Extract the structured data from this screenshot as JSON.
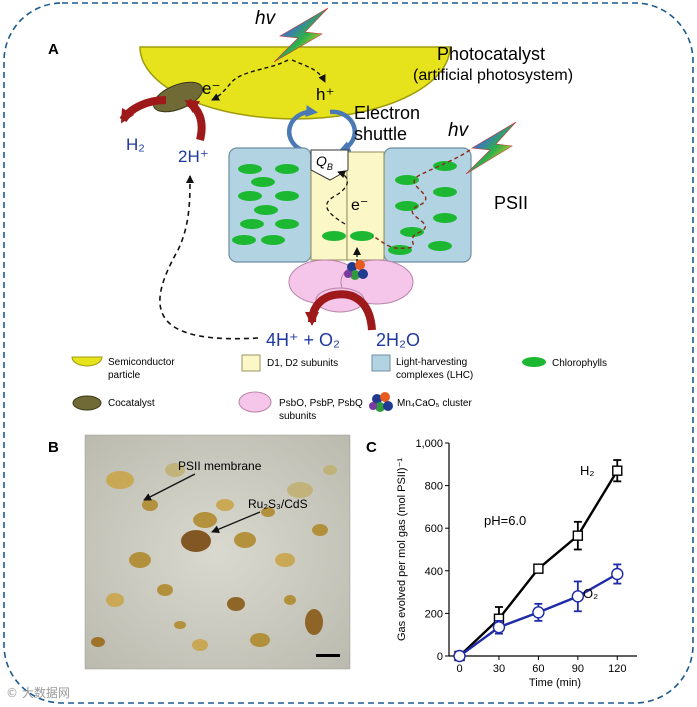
{
  "panel_a": {
    "label": "A",
    "hv_top": "hv",
    "hv_right": "hv",
    "photocatalyst": "Photocatalyst",
    "artificial": "(artificial photosystem)",
    "e_minus": "e⁻",
    "h_plus": "h⁺",
    "electron": "Electron",
    "shuttle": "shuttle",
    "h2": "H₂",
    "two_h_plus": "2H⁺",
    "qb": "Q",
    "qb_sub": "B",
    "e_inner": "e⁻",
    "psii": "PSII",
    "reaction_left": "4H⁺ + O₂",
    "reaction_right": "2H₂O",
    "legend": {
      "semiconductor": [
        "Semiconductor",
        "particle"
      ],
      "d1d2": "D1, D2 subunits",
      "lhc": [
        "Light-harvesting",
        "complexes (LHC)"
      ],
      "chlorophylls": "Chlorophylls",
      "cocatalyst": "Cocatalyst",
      "psbo": [
        "PsbO, PsbP, PsbQ",
        "subunits"
      ],
      "mn_cluster": "Mn₄CaO₅ cluster"
    }
  },
  "panel_b": {
    "label": "B",
    "psii_membrane": "PSII membrane",
    "ru2s3": "Ru₂S₃/CdS"
  },
  "panel_c": {
    "label": "C",
    "ph_label": "pH=6.0",
    "h2_label": "H₂",
    "o2_label": "O₂"
  },
  "chart_data": {
    "type": "line",
    "xlabel": "Time (min)",
    "ylabel": "Gas evolved per mol gas (mol PSII)⁻¹",
    "xlim": [
      -8,
      135
    ],
    "ylim": [
      0,
      1000
    ],
    "x_ticks": [
      0,
      30,
      60,
      90,
      120
    ],
    "y_ticks": [
      0,
      200,
      400,
      600,
      800,
      1000
    ],
    "y_tick_labels": [
      "0",
      "200",
      "400",
      "600",
      "800",
      "1,000"
    ],
    "grid": false,
    "series": [
      {
        "name": "H₂",
        "color": "#000000",
        "marker": "square",
        "x": [
          0,
          30,
          60,
          90,
          120
        ],
        "y": [
          0,
          175,
          410,
          565,
          870
        ],
        "err": [
          0,
          55,
          10,
          65,
          50
        ]
      },
      {
        "name": "O₂",
        "color": "#1e2aa8",
        "marker": "circle",
        "x": [
          0,
          30,
          60,
          90,
          120
        ],
        "y": [
          0,
          135,
          205,
          280,
          385
        ],
        "err": [
          0,
          30,
          40,
          70,
          45
        ]
      }
    ]
  },
  "watermark": "© 大数据网"
}
